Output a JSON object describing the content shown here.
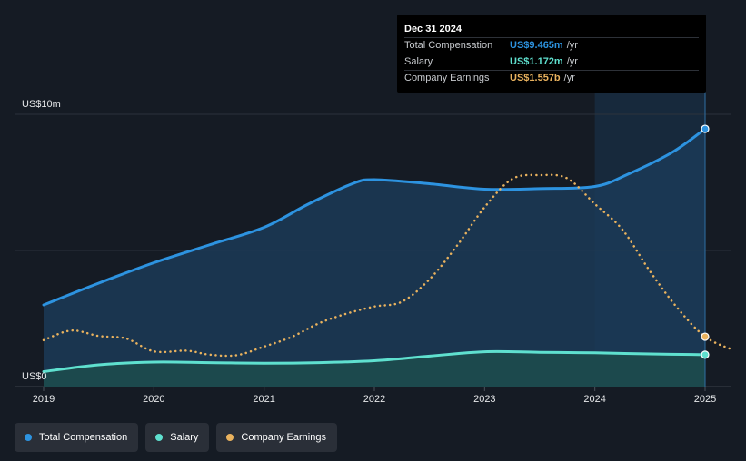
{
  "colors": {
    "total_compensation": "#2d93e0",
    "salary": "#5fe0cf",
    "company_earnings": "#e9b25e",
    "background": "#151b24",
    "area_comp": "#1b3a57",
    "area_salary": "#1d4b4c",
    "highlight": "#1a3550"
  },
  "tooltip": {
    "date": "Dec 31 2024",
    "rows": [
      {
        "label": "Total Compensation",
        "value": "US$9.465m",
        "unit": "/yr",
        "color": "#2d93e0"
      },
      {
        "label": "Salary",
        "value": "US$1.172m",
        "unit": "/yr",
        "color": "#5fe0cf"
      },
      {
        "label": "Company Earnings",
        "value": "US$1.557b",
        "unit": "/yr",
        "color": "#e9b25e"
      }
    ]
  },
  "legend": [
    {
      "label": "Total Compensation",
      "color": "#2d93e0",
      "icon": "dot-icon"
    },
    {
      "label": "Salary",
      "color": "#5fe0cf",
      "icon": "dot-icon"
    },
    {
      "label": "Company Earnings",
      "color": "#e9b25e",
      "icon": "dot-icon"
    }
  ],
  "chart_data": {
    "type": "line",
    "title": "",
    "xlabel": "",
    "ylabel": "",
    "y_axis_labels": [
      "US$10m",
      "US$0"
    ],
    "ylim": [
      0,
      10
    ],
    "xlim": [
      2019,
      2025.25
    ],
    "x_ticks": [
      "2019",
      "2020",
      "2021",
      "2022",
      "2023",
      "2024",
      "2025"
    ],
    "x_tick_values": [
      2019,
      2020,
      2021,
      2022,
      2023,
      2024,
      2025
    ],
    "highlight_range": [
      2024,
      2025
    ],
    "series": [
      {
        "name": "Total Compensation",
        "unit": "US$m",
        "color": "#2d93e0",
        "style": "solid",
        "filled": true,
        "x": [
          2019,
          2019.5,
          2020,
          2020.5,
          2021,
          2021.4,
          2021.8,
          2022,
          2022.5,
          2023,
          2023.5,
          2024,
          2024.3,
          2024.7,
          2025
        ],
        "y": [
          3.0,
          3.8,
          4.55,
          5.2,
          5.85,
          6.7,
          7.45,
          7.6,
          7.45,
          7.25,
          7.27,
          7.35,
          7.8,
          8.6,
          9.465
        ]
      },
      {
        "name": "Salary",
        "unit": "US$m",
        "color": "#5fe0cf",
        "style": "solid",
        "filled": true,
        "x": [
          2019,
          2019.5,
          2020,
          2020.5,
          2021,
          2021.5,
          2022,
          2022.5,
          2023,
          2023.5,
          2024,
          2024.5,
          2025
        ],
        "y": [
          0.55,
          0.8,
          0.9,
          0.88,
          0.86,
          0.88,
          0.95,
          1.12,
          1.28,
          1.26,
          1.24,
          1.2,
          1.172
        ]
      },
      {
        "name": "Company Earnings",
        "unit": "US$b",
        "color": "#e9b25e",
        "style": "dotted",
        "filled": false,
        "x": [
          2019,
          2019.25,
          2019.5,
          2019.75,
          2020,
          2020.3,
          2020.5,
          2020.75,
          2021,
          2021.25,
          2021.5,
          2021.75,
          2022,
          2022.25,
          2022.5,
          2022.75,
          2023,
          2023.25,
          2023.5,
          2023.75,
          2024,
          2024.25,
          2024.5,
          2024.75,
          2025,
          2025.25
        ],
        "y": [
          1.45,
          1.75,
          1.58,
          1.5,
          1.1,
          1.12,
          1.0,
          0.98,
          1.25,
          1.55,
          1.98,
          2.28,
          2.5,
          2.65,
          3.35,
          4.4,
          5.6,
          6.48,
          6.6,
          6.5,
          5.7,
          4.9,
          3.6,
          2.45,
          1.557,
          1.15
        ]
      }
    ],
    "earnings_axis_max_b": 8.5,
    "end_markers": [
      {
        "series": "Total Compensation",
        "x": 2025,
        "y": 9.465
      },
      {
        "series": "Salary",
        "x": 2025,
        "y": 1.172
      },
      {
        "series": "Company Earnings",
        "x": 2025,
        "y": 1.557
      }
    ]
  }
}
